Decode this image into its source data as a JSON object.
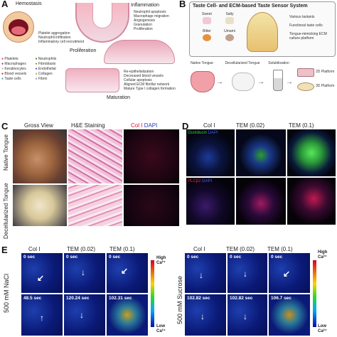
{
  "panelA": {
    "letter": "A",
    "hemostasis": "Hemostasis",
    "hemostasis_notes": [
      "Platelet aggregation",
      "Neutrophil infiltration",
      "Inflammatory cell recruitment"
    ],
    "inflammation": "Inflammation",
    "inflammation_notes": [
      "Neutrophil apoptosis",
      "Macrophage migration",
      "Angiogenesis",
      "Granulation",
      "Proliferation"
    ],
    "proliferation": "Proliferation",
    "proliferation_legend": [
      "Platelets",
      "Neutrophils",
      "Macrophages",
      "Fibroblasts",
      "Keratinocytes",
      "Endothelial",
      "Blood vessels",
      "Collagen",
      "Taste cells",
      "Fibrin"
    ],
    "maturation": "Maturation",
    "maturation_notes": [
      "Re-epithelialization",
      "Decreased blood vessels",
      "Cellular apoptosis",
      "Aligned ECM fibrillar network",
      "Mature Type I collagen formation"
    ]
  },
  "panelB": {
    "letter": "B",
    "title": "Taste Cell- and ECM-based Taste Sensor System",
    "tastes": [
      "Sweet",
      "Salty",
      "Bitter",
      "Umami"
    ],
    "right_labels": [
      "Various tastants",
      "Functional taste cells",
      "Tongue-mimicking ECM culture platform"
    ],
    "flow": [
      "Native Tongue",
      "Decellularized Tongue",
      "Solubilization"
    ],
    "platforms": [
      "2D Platform",
      "3D Platform"
    ]
  },
  "panelC": {
    "letter": "C",
    "columns": [
      "Gross View",
      "H&E Staining",
      "Col I",
      "DAPI"
    ],
    "rows": [
      "Native Tongue",
      "Decellularized Tongue"
    ]
  },
  "panelD": {
    "letter": "D",
    "columns": [
      "Col I",
      "TEM (0.02)",
      "TEM (0.1)"
    ],
    "row1_stain": "Gustducin",
    "row1_stain2": "DAPI",
    "row2_stain": "PLCβ2",
    "row2_stain2": "DAPI"
  },
  "panelE": {
    "letter": "E",
    "columns": [
      "Col I",
      "TEM (0.02)",
      "TEM (0.1)"
    ],
    "left_row_label": "500 mM NaCl",
    "right_row_label": "500 mM Sucrose",
    "left_times_top": [
      "0 sec",
      "0 sec",
      "0 sec"
    ],
    "left_times_bottom": [
      "48.5 sec",
      "120.24 sec",
      "102.31 sec"
    ],
    "right_times_top": [
      "0 sec",
      "0 sec",
      "0 sec"
    ],
    "right_times_bottom": [
      "102.82 sec",
      "102.82 sec",
      "106.7 sec"
    ],
    "colorbar_high": "High",
    "colorbar_low": "Low",
    "colorbar_unit": "Ca²⁺"
  },
  "colors": {
    "ca_bg": "#0b1a78",
    "blue_dapi": "#2040ff",
    "green": "#2fd82f",
    "red": "#e01030"
  }
}
